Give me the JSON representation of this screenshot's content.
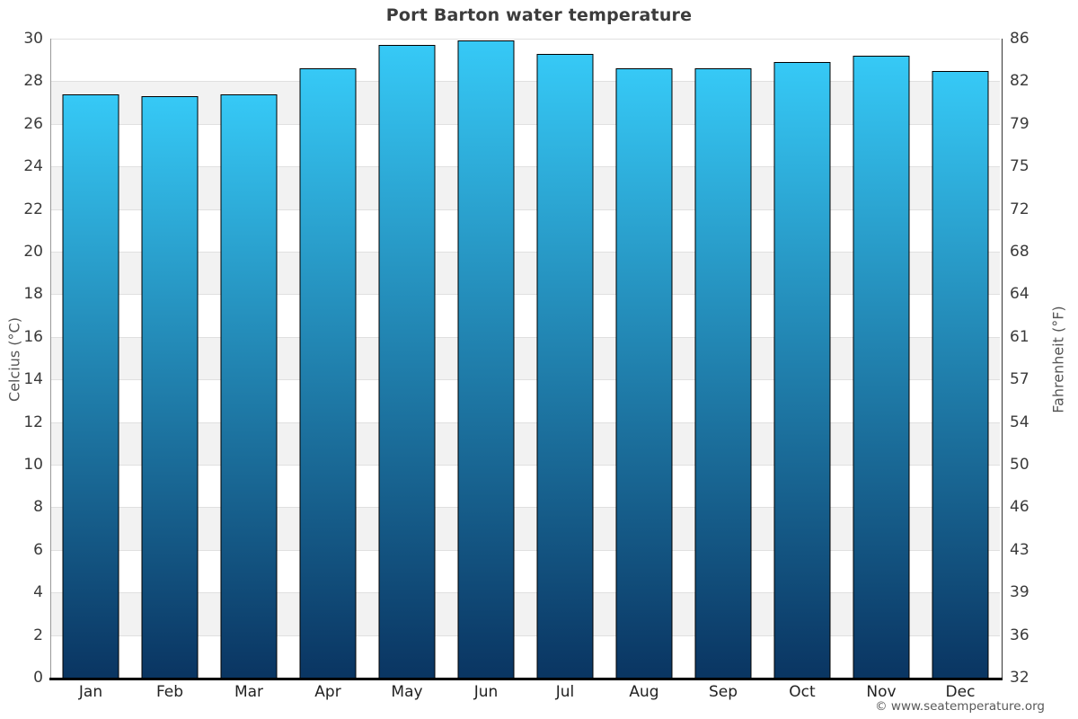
{
  "title": "Port Barton water temperature",
  "footer": {
    "copyright": "© www.seatemperature.org"
  },
  "colors": {
    "bar_top": "#36c9f6",
    "bar_bottom": "#0a3562",
    "bar_border": "#000000",
    "band": "#f2f2f2",
    "gridline": "#e0e0e0",
    "title_text": "#3c3c3c",
    "tick_label": "#3a3a3a",
    "month_label": "#222222",
    "axis_title": "#555555",
    "x_axis_line": "#000000",
    "left_axis_line": "#999999",
    "right_axis_line": "#333333",
    "footer_text": "#595959"
  },
  "chart_data": {
    "type": "bar",
    "title": "Port Barton water temperature",
    "categories": [
      "Jan",
      "Feb",
      "Mar",
      "Apr",
      "May",
      "Jun",
      "Jul",
      "Aug",
      "Sep",
      "Oct",
      "Nov",
      "Dec"
    ],
    "values": [
      27.4,
      27.3,
      27.4,
      28.6,
      29.7,
      29.9,
      29.3,
      28.6,
      28.6,
      28.9,
      29.2,
      28.5
    ],
    "unit": "°C",
    "ylabel_left": "Celcius (°C)",
    "ylabel_right": "Fahrenheit (°F)",
    "ylim": [
      0,
      30
    ],
    "tick_step": 2,
    "celsius_ticks": [
      30,
      28,
      26,
      24,
      22,
      20,
      18,
      16,
      14,
      12,
      10,
      8,
      6,
      4,
      2,
      0
    ],
    "fahrenheit_ticks": [
      86,
      82,
      79,
      75,
      72,
      68,
      64,
      61,
      57,
      54,
      50,
      46,
      43,
      39,
      36,
      32
    ],
    "grid": "horizontal gridlines every 2°C with alternating light-gray bands",
    "legend": "none"
  }
}
